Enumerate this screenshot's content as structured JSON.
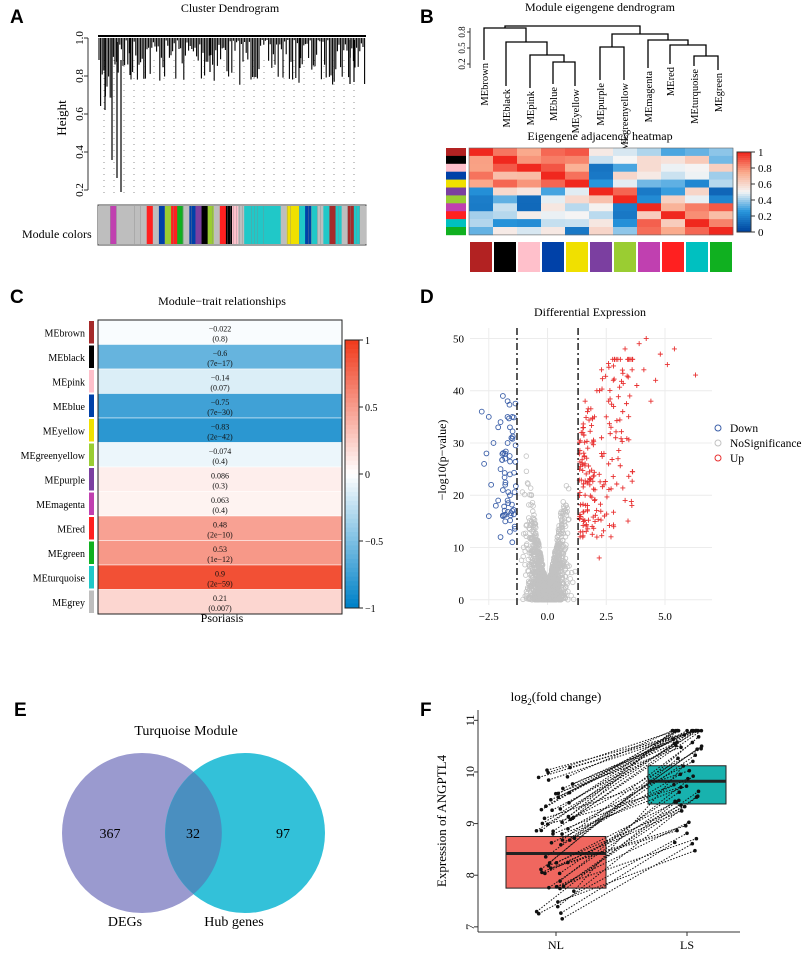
{
  "panels": {
    "A": "A",
    "B": "B",
    "C": "C",
    "D": "D",
    "E": "E",
    "F": "F"
  },
  "panel_a": {
    "title": "Cluster Dendrogram",
    "ylabel": "Height",
    "yticks": [
      "1.0",
      "0.8",
      "0.6",
      "0.4",
      "0.2"
    ],
    "module_colors_label": "Module colors"
  },
  "panel_b": {
    "title": "Module eigengene dendrogram",
    "yticks": [
      "0.8",
      "0.5",
      "0.2"
    ],
    "leaves": [
      "MEbrown",
      "MEblack",
      "MEpink",
      "MEblue",
      "MEyellow",
      "MEpurple",
      "MEgreenyellow",
      "MEmagenta",
      "MEred",
      "MEturquoise",
      "MEgreen"
    ],
    "heatmap_title": "Eigengene adjacency heatmap",
    "legend_ticks": [
      "1",
      "0.8",
      "0.6",
      "0.4",
      "0.2",
      "0"
    ],
    "module_colors": [
      "#b22222",
      "#000000",
      "#ffc0cb",
      "#0041a8",
      "#f0e000",
      "#7b3fa0",
      "#9acd32",
      "#c040b0",
      "#ff2020",
      "#00c0c0",
      "#10b020"
    ]
  },
  "chart_data": [
    {
      "type": "heatmap",
      "title": "Module−trait relationships",
      "xlabel": "Psoriasis",
      "rows": [
        "MEbrown",
        "MEblack",
        "MEpink",
        "MEblue",
        "MEyellow",
        "MEgreenyellow",
        "MEpurple",
        "MEmagenta",
        "MEred",
        "MEgreen",
        "MEturquoise",
        "MEgrey"
      ],
      "row_colors": [
        "#a52a2a",
        "#000000",
        "#ffc0cb",
        "#0041a8",
        "#f0e000",
        "#9acd32",
        "#7b3fa0",
        "#c040b0",
        "#ff2020",
        "#10b020",
        "#20c8c8",
        "#bebebe"
      ],
      "correlation": [
        -0.022,
        -0.6,
        -0.14,
        -0.75,
        -0.83,
        -0.074,
        0.086,
        0.063,
        0.48,
        0.53,
        0.9,
        0.21
      ],
      "corr_labels": [
        "−0.022",
        "−0.6",
        "−0.14",
        "−0.75",
        "−0.83",
        "−0.074",
        "0.086",
        "0.063",
        "0.48",
        "0.53",
        "0.9",
        "0.21"
      ],
      "pvalues": [
        "(0.8)",
        "(7e−17)",
        "(0.07)",
        "(7e−30)",
        "(2e−42)",
        "(0.4)",
        "(0.3)",
        "(0.4)",
        "(2e−10)",
        "(1e−12)",
        "(2e−59)",
        "(0.007)"
      ],
      "legend_range": [
        -1,
        1
      ],
      "legend_ticks": [
        "1",
        "0.5",
        "0",
        "−0.5",
        "−1"
      ]
    },
    {
      "type": "scatter",
      "title": "Differential Expression",
      "xlabel": "",
      "ylabel": "−log10(p−value)",
      "xlim": [
        -3.3,
        7.0
      ],
      "ylim": [
        -1,
        52
      ],
      "xticks": [
        "−2.5",
        "0.0",
        "2.5",
        "5.0"
      ],
      "yticks": [
        "0",
        "10",
        "20",
        "30",
        "40",
        "50"
      ],
      "thresholds": [
        -1.3,
        1.3
      ],
      "legend": [
        "Down",
        "NoSignificance",
        "Up"
      ],
      "series": [
        {
          "name": "Down",
          "color": "#3a5ea8",
          "points": [
            [
              -2.8,
              36
            ],
            [
              -2.5,
              35
            ],
            [
              -2.1,
              33
            ],
            [
              -1.9,
              39
            ],
            [
              -1.7,
              38
            ],
            [
              -2.3,
              30
            ],
            [
              -2.6,
              28
            ],
            [
              -1.8,
              27
            ],
            [
              -2.0,
              25
            ],
            [
              -1.6,
              24
            ],
            [
              -2.4,
              22
            ],
            [
              -1.9,
              21
            ],
            [
              -1.7,
              19
            ],
            [
              -2.2,
              18
            ],
            [
              -1.5,
              17
            ],
            [
              -2.5,
              16
            ],
            [
              -1.8,
              15
            ],
            [
              -1.6,
              13
            ],
            [
              -2.0,
              12
            ],
            [
              -1.5,
              11
            ],
            [
              -1.7,
              30
            ],
            [
              -1.6,
              33
            ],
            [
              -2.0,
              34
            ],
            [
              -1.5,
              35
            ],
            [
              -2.7,
              26
            ],
            [
              -1.8,
              22
            ],
            [
              -1.6,
              20
            ],
            [
              -2.1,
              19
            ],
            [
              -1.9,
              16
            ],
            [
              -1.4,
              14
            ]
          ]
        },
        {
          "name": "Up",
          "color": "#e83030",
          "points": [
            [
              1.5,
              32
            ],
            [
              1.7,
              36
            ],
            [
              1.9,
              30
            ],
            [
              2.1,
              40
            ],
            [
              2.3,
              44
            ],
            [
              2.6,
              38
            ],
            [
              2.8,
              42
            ],
            [
              3.1,
              46
            ],
            [
              3.3,
              48
            ],
            [
              3.6,
              44
            ],
            [
              3.9,
              49
            ],
            [
              4.2,
              50
            ],
            [
              4.8,
              47
            ],
            [
              5.4,
              48
            ],
            [
              6.3,
              43
            ],
            [
              1.6,
              26
            ],
            [
              1.8,
              22
            ],
            [
              2.0,
              19
            ],
            [
              2.2,
              24
            ],
            [
              2.4,
              28
            ],
            [
              2.7,
              33
            ],
            [
              2.9,
              31
            ],
            [
              3.2,
              36
            ],
            [
              3.5,
              39
            ],
            [
              3.8,
              41
            ],
            [
              4.1,
              44
            ],
            [
              4.4,
              38
            ],
            [
              1.7,
              17
            ],
            [
              1.9,
              14
            ],
            [
              2.1,
              12
            ],
            [
              1.6,
              20
            ],
            [
              2.5,
              35
            ],
            [
              3.0,
              27
            ],
            [
              4.6,
              42
            ],
            [
              5.1,
              45
            ],
            [
              2.2,
              8
            ],
            [
              1.5,
              12
            ],
            [
              1.6,
              38
            ],
            [
              2.0,
              35
            ],
            [
              2.3,
              31
            ],
            [
              2.6,
              26
            ],
            [
              2.4,
              22
            ]
          ]
        }
      ]
    },
    {
      "type": "venn",
      "title": "Turquoise Module",
      "sets": [
        {
          "name": "DEGs",
          "only": 367,
          "color": "#9a9acf"
        },
        {
          "name": "Hub genes",
          "only": 97,
          "color": "#22bcd6"
        }
      ],
      "intersection": 32,
      "labels": {
        "left": "367",
        "mid": "32",
        "right": "97"
      }
    },
    {
      "type": "box",
      "title": "log",
      "title_sub": "2",
      "title_rest": "(fold change)",
      "ylabel": "Expression of  ANGPTL4",
      "ylim": [
        6.9,
        11.2
      ],
      "yticks": [
        "7",
        "8",
        "9",
        "10",
        "11"
      ],
      "categories": [
        "NL",
        "LS"
      ],
      "boxes": [
        {
          "name": "NL",
          "q1": 7.75,
          "median": 8.42,
          "q3": 8.75,
          "color": "#f0675f"
        },
        {
          "name": "LS",
          "q1": 9.38,
          "median": 9.82,
          "q3": 10.12,
          "color": "#18b2ae"
        }
      ],
      "n_paired": 60
    }
  ]
}
